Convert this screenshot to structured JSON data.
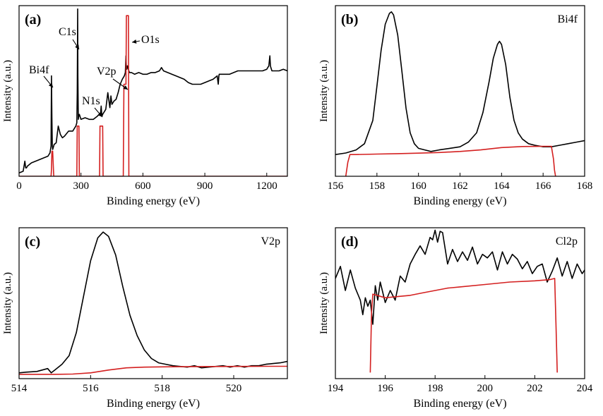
{
  "chart_data": [
    {
      "type": "line",
      "panel_label": "(a)",
      "xlabel": "Binding energy (eV)",
      "ylabel": "Intensity (a.u.)",
      "xlim": [
        0,
        1300
      ],
      "xticks": [
        0,
        300,
        600,
        900,
        1200
      ],
      "annotations": [
        "Bi4f",
        "C1s",
        "N1s",
        "V2p",
        "O1s"
      ],
      "series": [
        {
          "color": "#000000",
          "x": [
            0,
            20,
            28,
            32,
            36,
            40,
            60,
            100,
            140,
            150,
            155,
            157,
            159,
            161,
            163,
            170,
            180,
            190,
            200,
            210,
            220,
            240,
            260,
            270,
            275,
            280,
            282,
            284,
            285,
            287,
            289,
            292,
            300,
            320,
            340,
            360,
            380,
            395,
            398,
            400,
            402,
            405,
            420,
            430,
            440,
            445,
            450,
            460,
            470,
            480,
            490,
            500,
            510,
            515,
            518,
            520,
            522,
            525,
            530,
            532,
            535,
            545,
            560,
            580,
            600,
            620,
            640,
            660,
            680,
            690,
            700,
            720,
            740,
            760,
            780,
            800,
            820,
            840,
            860,
            880,
            900,
            920,
            940,
            960,
            965,
            968,
            970,
            980,
            1000,
            1020,
            1040,
            1060,
            1080,
            1100,
            1120,
            1140,
            1160,
            1180,
            1200,
            1210,
            1215,
            1218,
            1220,
            1225,
            1240,
            1260,
            1280,
            1300
          ],
          "y": [
            2,
            3,
            9,
            5,
            5,
            6,
            8,
            10,
            12,
            14,
            18,
            60,
            35,
            18,
            16,
            19,
            20,
            30,
            25,
            23,
            24,
            27,
            27,
            29,
            30,
            32,
            50,
            100,
            60,
            34,
            36,
            37,
            34,
            35,
            34,
            34,
            36,
            38,
            42,
            38,
            36,
            37,
            40,
            50,
            41,
            48,
            43,
            45,
            46,
            50,
            55,
            58,
            60,
            62,
            72,
            65,
            64,
            66,
            64,
            63,
            62,
            62,
            61,
            62,
            61,
            61,
            62,
            62,
            63,
            65,
            63,
            62,
            61,
            60,
            59,
            58,
            56,
            55,
            55,
            55,
            56,
            57,
            58,
            60,
            55,
            60,
            61,
            61,
            61,
            61,
            62,
            63,
            63,
            63,
            63,
            63,
            63,
            63,
            64,
            66,
            72,
            66,
            65,
            63,
            63,
            63,
            64,
            63
          ]
        },
        {
          "color": "#d42020",
          "x": [
            0,
            155,
            157,
            159,
            163,
            168,
            280,
            282,
            284,
            290,
            292,
            390,
            392,
            395,
            405,
            407,
            505,
            508,
            518,
            520,
            525,
            530,
            532,
            1300
          ],
          "y": [
            0,
            0,
            4,
            15,
            15,
            0,
            0,
            30,
            30,
            30,
            0,
            0,
            30,
            30,
            30,
            0,
            0,
            55,
            55,
            96,
            96,
            96,
            0,
            0
          ]
        }
      ]
    },
    {
      "type": "line",
      "panel_label": "(b)",
      "element": "Bi4f",
      "xlabel": "Binding energy (eV)",
      "ylabel": "Intensity (a.u.)",
      "xlim": [
        156,
        168
      ],
      "xticks": [
        156,
        158,
        160,
        162,
        164,
        166,
        168
      ],
      "series": [
        {
          "color": "#000000",
          "x": [
            156,
            156.5,
            157,
            157.4,
            157.8,
            158.0,
            158.2,
            158.4,
            158.6,
            158.7,
            158.8,
            159.0,
            159.2,
            159.4,
            159.6,
            159.8,
            160.0,
            160.3,
            160.6,
            161.0,
            161.5,
            162.0,
            162.4,
            162.8,
            163.1,
            163.4,
            163.6,
            163.8,
            163.9,
            164.0,
            164.2,
            164.4,
            164.6,
            164.8,
            165.0,
            165.3,
            165.6,
            166.0,
            166.4,
            166.8,
            167.2,
            167.6,
            168
          ],
          "y": [
            8,
            9,
            11,
            15,
            30,
            52,
            75,
            92,
            99,
            100,
            98,
            85,
            62,
            38,
            22,
            15,
            12,
            11,
            10,
            11,
            12,
            13,
            16,
            22,
            35,
            55,
            70,
            79,
            81,
            79,
            66,
            45,
            30,
            22,
            18,
            15,
            14,
            13,
            13,
            14,
            15,
            16,
            17
          ]
        },
        {
          "color": "#d42020",
          "x": [
            156.5,
            156.6,
            156.7,
            157,
            158,
            159,
            160,
            161,
            162,
            163,
            164,
            165,
            166,
            166.4,
            166.5,
            166.55,
            166.6
          ],
          "y": [
            -6,
            3,
            8,
            8,
            8.3,
            8.6,
            8.9,
            9.3,
            10,
            11,
            12.5,
            13.2,
            13.3,
            13.3,
            5,
            -2,
            -6
          ]
        }
      ]
    },
    {
      "type": "line",
      "panel_label": "(c)",
      "element": "V2p",
      "xlabel": "Binding energy (eV)",
      "ylabel": "Intensity (a.u.)",
      "xlim": [
        514,
        521.5
      ],
      "xticks": [
        514,
        516,
        518,
        520
      ],
      "series": [
        {
          "color": "#000000",
          "x": [
            514,
            514.2,
            514.5,
            514.8,
            514.9,
            515.0,
            515.2,
            515.4,
            515.6,
            515.8,
            516.0,
            516.2,
            516.35,
            516.5,
            516.7,
            516.9,
            517.1,
            517.3,
            517.5,
            517.7,
            517.9,
            518.1,
            518.3,
            518.5,
            518.7,
            518.9,
            519.1,
            519.3,
            519.5,
            519.7,
            519.9,
            520.1,
            520.3,
            520.5,
            520.7,
            520.9,
            521.1,
            521.3,
            521.5
          ],
          "y": [
            2,
            2.5,
            3,
            5,
            2,
            4,
            8,
            14,
            30,
            55,
            80,
            96,
            100,
            97,
            84,
            62,
            42,
            28,
            18,
            12,
            9,
            8,
            7,
            6.5,
            6,
            7,
            5.5,
            6,
            6.5,
            7,
            6,
            7,
            6,
            7,
            7,
            8,
            8.5,
            9,
            10
          ]
        },
        {
          "color": "#d42020",
          "x": [
            514,
            514.5,
            515,
            515.5,
            516,
            516.5,
            517,
            517.5,
            518,
            518.5,
            519,
            520,
            521,
            521.5
          ],
          "y": [
            1,
            1,
            1,
            1.2,
            2,
            4,
            5.5,
            6,
            6.2,
            6.3,
            6.4,
            6.5,
            6.6,
            6.6
          ]
        }
      ]
    },
    {
      "type": "line",
      "panel_label": "(d)",
      "element": "Cl2p",
      "xlabel": "Binding energy (eV)",
      "ylabel": "Intensity (a.u.)",
      "xlim": [
        194,
        204
      ],
      "xticks": [
        194,
        196,
        198,
        200,
        202,
        204
      ],
      "series": [
        {
          "color": "#000000",
          "x": [
            194,
            194.2,
            194.4,
            194.6,
            194.8,
            195.0,
            195.1,
            195.2,
            195.3,
            195.4,
            195.5,
            195.6,
            195.7,
            195.8,
            196.0,
            196.2,
            196.4,
            196.6,
            196.8,
            197.0,
            197.2,
            197.4,
            197.6,
            197.8,
            197.9,
            198.0,
            198.1,
            198.2,
            198.3,
            198.5,
            198.7,
            198.9,
            199.1,
            199.3,
            199.5,
            199.7,
            199.9,
            200.1,
            200.3,
            200.5,
            200.7,
            200.9,
            201.1,
            201.3,
            201.5,
            201.7,
            201.9,
            202.1,
            202.3,
            202.5,
            202.7,
            202.9,
            203.1,
            203.3,
            203.5,
            203.7,
            203.9,
            204
          ],
          "y": [
            58,
            68,
            48,
            65,
            50,
            40,
            28,
            42,
            35,
            40,
            20,
            52,
            40,
            55,
            38,
            48,
            40,
            60,
            55,
            70,
            78,
            85,
            78,
            92,
            90,
            98,
            88,
            97,
            96,
            70,
            82,
            72,
            80,
            73,
            84,
            70,
            78,
            75,
            80,
            65,
            80,
            70,
            78,
            74,
            66,
            72,
            62,
            68,
            70,
            55,
            64,
            75,
            60,
            72,
            58,
            70,
            62,
            65
          ]
        },
        {
          "color": "#d42020",
          "x": [
            195.4,
            195.45,
            195.5,
            196,
            196.5,
            197,
            197.5,
            198,
            198.5,
            199,
            200,
            201,
            202,
            202.6,
            202.8,
            202.85,
            202.9
          ],
          "y": [
            -20,
            30,
            45,
            42,
            43,
            44,
            46,
            48,
            50,
            51,
            53,
            55,
            56,
            57,
            58,
            20,
            -20
          ]
        }
      ]
    }
  ]
}
